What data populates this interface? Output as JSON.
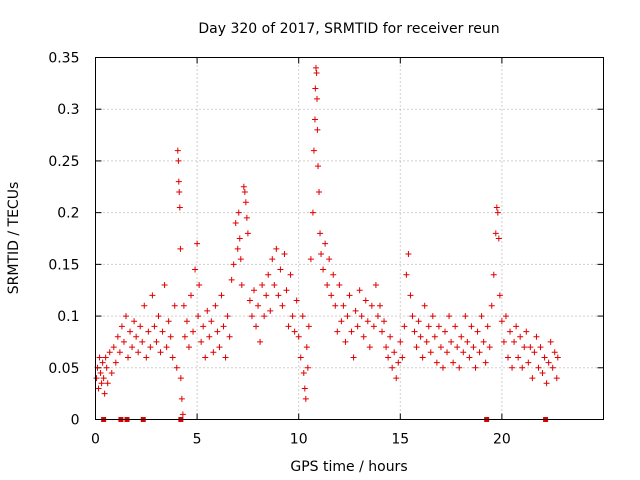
{
  "chart_data": {
    "type": "scatter",
    "title": "Day 320 of 2017, SRMTID for receiver reun",
    "xlabel": "GPS time / hours",
    "ylabel": "SRMTID / TECUs",
    "xlim": [
      0,
      25
    ],
    "ylim": [
      0,
      0.35
    ],
    "x_ticks": [
      0,
      5,
      10,
      15,
      20
    ],
    "x_tick_labels": [
      "0",
      "5",
      "10",
      "15",
      "20"
    ],
    "y_ticks": [
      0,
      0.05,
      0.1,
      0.15,
      0.2,
      0.25,
      0.3,
      0.35
    ],
    "y_tick_labels": [
      "0",
      "0.05",
      "0.1",
      "0.15",
      "0.2",
      "0.25",
      "0.3",
      "0.35"
    ],
    "grid": true,
    "marker": "+",
    "color": "#e00000",
    "series": [
      {
        "name": "SRMTID",
        "points": [
          [
            0.05,
            0.04
          ],
          [
            0.1,
            0.05
          ],
          [
            0.15,
            0.03
          ],
          [
            0.2,
            0.06
          ],
          [
            0.25,
            0.045
          ],
          [
            0.3,
            0.035
          ],
          [
            0.35,
            0.055
          ],
          [
            0.4,
            0.04
          ],
          [
            0.45,
            0.025
          ],
          [
            0.5,
            0.06
          ],
          [
            0.55,
            0.05
          ],
          [
            0.6,
            0.035
          ],
          [
            0.7,
            0.065
          ],
          [
            0.8,
            0.045
          ],
          [
            0.9,
            0.07
          ],
          [
            1.0,
            0.055
          ],
          [
            1.1,
            0.08
          ],
          [
            1.2,
            0.065
          ],
          [
            1.3,
            0.09
          ],
          [
            1.4,
            0.075
          ],
          [
            1.5,
            0.1
          ],
          [
            1.6,
            0.06
          ],
          [
            1.7,
            0.085
          ],
          [
            1.8,
            0.07
          ],
          [
            1.9,
            0.095
          ],
          [
            2.0,
            0.08
          ],
          [
            2.1,
            0.065
          ],
          [
            2.2,
            0.09
          ],
          [
            2.3,
            0.075
          ],
          [
            2.4,
            0.11
          ],
          [
            2.5,
            0.06
          ],
          [
            2.6,
            0.085
          ],
          [
            2.7,
            0.07
          ],
          [
            2.8,
            0.12
          ],
          [
            2.9,
            0.09
          ],
          [
            3.0,
            0.075
          ],
          [
            3.1,
            0.1
          ],
          [
            3.2,
            0.065
          ],
          [
            3.3,
            0.085
          ],
          [
            3.4,
            0.13
          ],
          [
            3.5,
            0.07
          ],
          [
            3.6,
            0.095
          ],
          [
            3.7,
            0.08
          ],
          [
            3.8,
            0.06
          ],
          [
            3.9,
            0.11
          ],
          [
            4.0,
            0.05
          ],
          [
            4.05,
            0.26
          ],
          [
            4.08,
            0.25
          ],
          [
            4.1,
            0.23
          ],
          [
            4.12,
            0.22
          ],
          [
            4.15,
            0.205
          ],
          [
            4.18,
            0.165
          ],
          [
            4.2,
            0.04
          ],
          [
            4.25,
            0.02
          ],
          [
            4.3,
            0.005
          ],
          [
            4.35,
            0.11
          ],
          [
            4.4,
            0.08
          ],
          [
            4.5,
            0.095
          ],
          [
            4.6,
            0.07
          ],
          [
            4.7,
            0.12
          ],
          [
            4.8,
            0.085
          ],
          [
            4.9,
            0.145
          ],
          [
            5.0,
            0.17
          ],
          [
            5.05,
            0.1
          ],
          [
            5.1,
            0.13
          ],
          [
            5.2,
            0.075
          ],
          [
            5.3,
            0.09
          ],
          [
            5.4,
            0.06
          ],
          [
            5.5,
            0.105
          ],
          [
            5.6,
            0.08
          ],
          [
            5.7,
            0.095
          ],
          [
            5.8,
            0.065
          ],
          [
            5.9,
            0.11
          ],
          [
            6.0,
            0.085
          ],
          [
            6.1,
            0.07
          ],
          [
            6.2,
            0.12
          ],
          [
            6.3,
            0.09
          ],
          [
            6.4,
            0.06
          ],
          [
            6.5,
            0.1
          ],
          [
            6.6,
            0.08
          ],
          [
            6.7,
            0.135
          ],
          [
            6.8,
            0.15
          ],
          [
            6.9,
            0.19
          ],
          [
            7.0,
            0.165
          ],
          [
            7.05,
            0.2
          ],
          [
            7.1,
            0.175
          ],
          [
            7.15,
            0.155
          ],
          [
            7.2,
            0.13
          ],
          [
            7.3,
            0.225
          ],
          [
            7.35,
            0.22
          ],
          [
            7.4,
            0.21
          ],
          [
            7.45,
            0.195
          ],
          [
            7.5,
            0.18
          ],
          [
            7.6,
            0.115
          ],
          [
            7.7,
            0.1
          ],
          [
            7.8,
            0.125
          ],
          [
            7.9,
            0.09
          ],
          [
            8.0,
            0.11
          ],
          [
            8.1,
            0.075
          ],
          [
            8.2,
            0.13
          ],
          [
            8.3,
            0.1
          ],
          [
            8.4,
            0.12
          ],
          [
            8.5,
            0.14
          ],
          [
            8.6,
            0.105
          ],
          [
            8.7,
            0.155
          ],
          [
            8.8,
            0.13
          ],
          [
            8.9,
            0.165
          ],
          [
            9.0,
            0.12
          ],
          [
            9.1,
            0.145
          ],
          [
            9.2,
            0.11
          ],
          [
            9.3,
            0.16
          ],
          [
            9.4,
            0.125
          ],
          [
            9.5,
            0.09
          ],
          [
            9.6,
            0.14
          ],
          [
            9.7,
            0.1
          ],
          [
            9.8,
            0.085
          ],
          [
            9.9,
            0.115
          ],
          [
            10.0,
            0.08
          ],
          [
            10.1,
            0.06
          ],
          [
            10.2,
            0.1
          ],
          [
            10.25,
            0.045
          ],
          [
            10.3,
            0.03
          ],
          [
            10.35,
            0.02
          ],
          [
            10.4,
            0.07
          ],
          [
            10.45,
            0.05
          ],
          [
            10.5,
            0.09
          ],
          [
            10.6,
            0.155
          ],
          [
            10.7,
            0.2
          ],
          [
            10.75,
            0.26
          ],
          [
            10.8,
            0.29
          ],
          [
            10.82,
            0.32
          ],
          [
            10.85,
            0.34
          ],
          [
            10.88,
            0.335
          ],
          [
            10.9,
            0.31
          ],
          [
            10.92,
            0.28
          ],
          [
            10.95,
            0.245
          ],
          [
            11.0,
            0.22
          ],
          [
            11.05,
            0.18
          ],
          [
            11.1,
            0.16
          ],
          [
            11.2,
            0.145
          ],
          [
            11.3,
            0.17
          ],
          [
            11.4,
            0.13
          ],
          [
            11.5,
            0.155
          ],
          [
            11.6,
            0.12
          ],
          [
            11.7,
            0.14
          ],
          [
            11.8,
            0.11
          ],
          [
            11.9,
            0.085
          ],
          [
            12.0,
            0.13
          ],
          [
            12.1,
            0.095
          ],
          [
            12.2,
            0.11
          ],
          [
            12.3,
            0.075
          ],
          [
            12.4,
            0.1
          ],
          [
            12.5,
            0.12
          ],
          [
            12.6,
            0.085
          ],
          [
            12.7,
            0.06
          ],
          [
            12.8,
            0.105
          ],
          [
            12.9,
            0.09
          ],
          [
            13.0,
            0.125
          ],
          [
            13.1,
            0.1
          ],
          [
            13.2,
            0.08
          ],
          [
            13.3,
            0.115
          ],
          [
            13.4,
            0.095
          ],
          [
            13.5,
            0.07
          ],
          [
            13.6,
            0.11
          ],
          [
            13.7,
            0.09
          ],
          [
            13.8,
            0.13
          ],
          [
            13.9,
            0.1
          ],
          [
            14.0,
            0.11
          ],
          [
            14.1,
            0.085
          ],
          [
            14.2,
            0.095
          ],
          [
            14.3,
            0.07
          ],
          [
            14.4,
            0.06
          ],
          [
            14.5,
            0.08
          ],
          [
            14.6,
            0.05
          ],
          [
            14.7,
            0.065
          ],
          [
            14.8,
            0.04
          ],
          [
            14.9,
            0.055
          ],
          [
            15.0,
            0.075
          ],
          [
            15.1,
            0.06
          ],
          [
            15.2,
            0.09
          ],
          [
            15.3,
            0.14
          ],
          [
            15.4,
            0.16
          ],
          [
            15.5,
            0.12
          ],
          [
            15.6,
            0.1
          ],
          [
            15.7,
            0.085
          ],
          [
            15.8,
            0.07
          ],
          [
            15.9,
            0.095
          ],
          [
            16.0,
            0.08
          ],
          [
            16.1,
            0.06
          ],
          [
            16.2,
            0.11
          ],
          [
            16.3,
            0.075
          ],
          [
            16.4,
            0.09
          ],
          [
            16.5,
            0.065
          ],
          [
            16.6,
            0.1
          ],
          [
            16.7,
            0.08
          ],
          [
            16.8,
            0.055
          ],
          [
            16.9,
            0.09
          ],
          [
            17.0,
            0.07
          ],
          [
            17.1,
            0.05
          ],
          [
            17.2,
            0.085
          ],
          [
            17.3,
            0.065
          ],
          [
            17.4,
            0.1
          ],
          [
            17.5,
            0.075
          ],
          [
            17.6,
            0.055
          ],
          [
            17.7,
            0.09
          ],
          [
            17.8,
            0.07
          ],
          [
            17.9,
            0.05
          ],
          [
            18.0,
            0.08
          ],
          [
            18.1,
            0.065
          ],
          [
            18.2,
            0.1
          ],
          [
            18.3,
            0.075
          ],
          [
            18.4,
            0.06
          ],
          [
            18.5,
            0.09
          ],
          [
            18.6,
            0.07
          ],
          [
            18.7,
            0.05
          ],
          [
            18.8,
            0.085
          ],
          [
            18.9,
            0.065
          ],
          [
            19.0,
            0.1
          ],
          [
            19.1,
            0.075
          ],
          [
            19.2,
            0.055
          ],
          [
            19.3,
            0.09
          ],
          [
            19.4,
            0.07
          ],
          [
            19.5,
            0.11
          ],
          [
            19.6,
            0.14
          ],
          [
            19.7,
            0.18
          ],
          [
            19.75,
            0.205
          ],
          [
            19.8,
            0.2
          ],
          [
            19.85,
            0.175
          ],
          [
            19.9,
            0.12
          ],
          [
            20.0,
            0.095
          ],
          [
            20.1,
            0.075
          ],
          [
            20.2,
            0.1
          ],
          [
            20.3,
            0.06
          ],
          [
            20.4,
            0.085
          ],
          [
            20.5,
            0.05
          ],
          [
            20.6,
            0.075
          ],
          [
            20.7,
            0.09
          ],
          [
            20.8,
            0.06
          ],
          [
            20.9,
            0.08
          ],
          [
            21.0,
            0.05
          ],
          [
            21.1,
            0.07
          ],
          [
            21.2,
            0.085
          ],
          [
            21.3,
            0.055
          ],
          [
            21.4,
            0.07
          ],
          [
            21.5,
            0.04
          ],
          [
            21.6,
            0.065
          ],
          [
            21.7,
            0.08
          ],
          [
            21.8,
            0.05
          ],
          [
            21.9,
            0.07
          ],
          [
            22.0,
            0.045
          ],
          [
            22.1,
            0.06
          ],
          [
            22.2,
            0.035
          ],
          [
            22.3,
            0.055
          ],
          [
            22.4,
            0.075
          ],
          [
            22.5,
            0.05
          ],
          [
            22.6,
            0.065
          ],
          [
            22.7,
            0.04
          ],
          [
            22.75,
            0.06
          ]
        ],
        "zero_points": [
          0.4,
          1.25,
          1.55,
          2.35,
          4.2,
          19.25,
          22.15
        ]
      }
    ]
  }
}
